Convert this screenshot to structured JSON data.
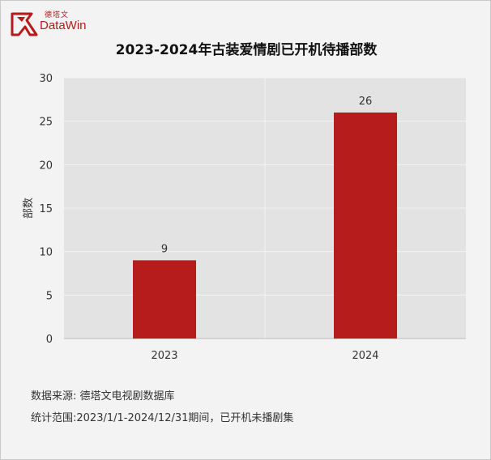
{
  "brand": {
    "name_cn": "德塔文",
    "name_en": "DataWin"
  },
  "colors": {
    "bar": "#b71c1c",
    "plot_bg": "#e3e3e3",
    "grid": "#f3f3f3",
    "text": "#333333",
    "brand": "#b61b1b"
  },
  "footer": {
    "source": "数据来源: 德塔文电视剧数据库",
    "range": "统计范围:2023/1/1-2024/12/31期间，已开机未播剧集"
  },
  "chart_data": {
    "type": "bar",
    "title": "2023-2024年古装爱情剧已开机待播部数",
    "ylabel": "部数",
    "xlabel": "",
    "categories": [
      "2023",
      "2024"
    ],
    "values": [
      9,
      26
    ],
    "data_labels": [
      "9",
      "26"
    ],
    "ylim": [
      0,
      30
    ],
    "yticks": [
      "0",
      "5",
      "10",
      "15",
      "20",
      "25",
      "30"
    ],
    "grid": true,
    "legend": "none"
  }
}
